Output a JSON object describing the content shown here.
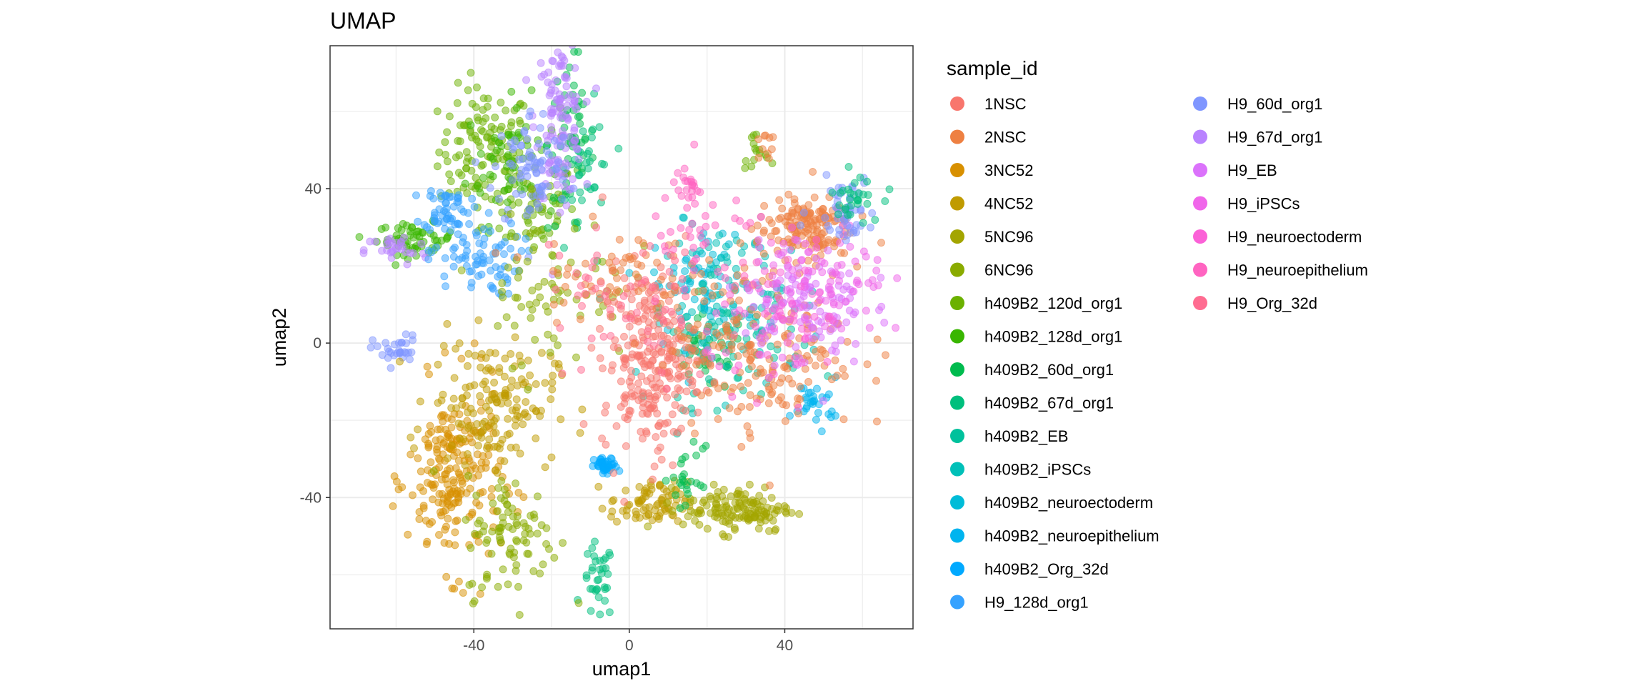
{
  "chart_data": {
    "type": "scatter",
    "title": "UMAP",
    "xlabel": "umap1",
    "ylabel": "umap2",
    "xlim": [
      -77,
      73
    ],
    "ylim": [
      -74,
      77
    ],
    "xticks": [
      -40,
      0,
      40
    ],
    "yticks": [
      -40,
      0,
      40
    ],
    "grid": true,
    "legend_title": "sample_id",
    "legend_position": "right",
    "series": [
      {
        "name": "1NSC",
        "color": "#F8766D"
      },
      {
        "name": "2NSC",
        "color": "#EE8042"
      },
      {
        "name": "3NC52",
        "color": "#D89000"
      },
      {
        "name": "4NC52",
        "color": "#C09B00"
      },
      {
        "name": "5NC96",
        "color": "#A3A500"
      },
      {
        "name": "6NC96",
        "color": "#8AAB00"
      },
      {
        "name": "h409B2_120d_org1",
        "color": "#6BB100"
      },
      {
        "name": "h409B2_128d_org1",
        "color": "#39B600"
      },
      {
        "name": "h409B2_60d_org1",
        "color": "#00BB4E"
      },
      {
        "name": "h409B2_67d_org1",
        "color": "#00BF7D"
      },
      {
        "name": "h409B2_EB",
        "color": "#00C19C"
      },
      {
        "name": "h409B2_iPSCs",
        "color": "#00C0B8"
      },
      {
        "name": "h409B2_neuroectoderm",
        "color": "#00BCD8"
      },
      {
        "name": "h409B2_neuroepithelium",
        "color": "#00B4EF"
      },
      {
        "name": "h409B2_Org_32d",
        "color": "#00A9FF"
      },
      {
        "name": "H9_128d_org1",
        "color": "#35A2FF"
      },
      {
        "name": "H9_60d_org1",
        "color": "#7F96FF"
      },
      {
        "name": "H9_67d_org1",
        "color": "#B983FF"
      },
      {
        "name": "H9_EB",
        "color": "#DB72FB"
      },
      {
        "name": "H9_iPSCs",
        "color": "#F066EA"
      },
      {
        "name": "H9_neuroectoderm",
        "color": "#FB61D7"
      },
      {
        "name": "H9_neuroepithelium",
        "color": "#FF64C1"
      },
      {
        "name": "H9_Org_32d",
        "color": "#FF6C91"
      }
    ],
    "clusters": [
      {
        "series": "h409B2_120d_org1",
        "cx": -37,
        "cy": 50,
        "sx": 6,
        "sy": 8,
        "n": 120
      },
      {
        "series": "h409B2_120d_org1",
        "cx": -25,
        "cy": 35,
        "sx": 6,
        "sy": 6,
        "n": 60
      },
      {
        "series": "h409B2_128d_org1",
        "cx": -30,
        "cy": 47,
        "sx": 6,
        "sy": 8,
        "n": 60
      },
      {
        "series": "h409B2_128d_org1",
        "cx": -55,
        "cy": 27,
        "sx": 5,
        "sy": 2,
        "n": 60
      },
      {
        "series": "h409B2_60d_org1",
        "cx": -15,
        "cy": 52,
        "sx": 3,
        "sy": 12,
        "n": 60
      },
      {
        "series": "h409B2_60d_org1",
        "cx": 20,
        "cy": -3,
        "sx": 5,
        "sy": 5,
        "n": 40
      },
      {
        "series": "h409B2_67d_org1",
        "cx": -8,
        "cy": -62,
        "sx": 2,
        "sy": 5,
        "n": 35
      },
      {
        "series": "h409B2_67d_org1",
        "cx": -10,
        "cy": 45,
        "sx": 3,
        "sy": 8,
        "n": 30
      },
      {
        "series": "H9_67d_org1",
        "cx": -18,
        "cy": 58,
        "sx": 3,
        "sy": 10,
        "n": 120
      },
      {
        "series": "H9_67d_org1",
        "cx": -60,
        "cy": 24,
        "sx": 4,
        "sy": 2,
        "n": 30
      },
      {
        "series": "H9_60d_org1",
        "cx": -25,
        "cy": 45,
        "sx": 5,
        "sy": 8,
        "n": 80
      },
      {
        "series": "H9_128d_org1",
        "cx": -47,
        "cy": 35,
        "sx": 3,
        "sy": 3,
        "n": 50
      },
      {
        "series": "H9_128d_org1",
        "cx": -40,
        "cy": 22,
        "sx": 6,
        "sy": 5,
        "n": 80
      },
      {
        "series": "H9_60d_org1",
        "cx": -60,
        "cy": -2,
        "sx": 3,
        "sy": 2,
        "n": 30
      },
      {
        "series": "h409B2_Org_32d",
        "cx": -6,
        "cy": -32,
        "sx": 1.5,
        "sy": 1.2,
        "n": 40
      },
      {
        "series": "h409B2_neuroepithelium",
        "cx": 48,
        "cy": -15,
        "sx": 3,
        "sy": 3,
        "n": 30
      },
      {
        "series": "h409B2_neuroectoderm",
        "cx": 18,
        "cy": 15,
        "sx": 6,
        "sy": 8,
        "n": 80
      },
      {
        "series": "h409B2_iPSCs",
        "cx": 30,
        "cy": 10,
        "sx": 10,
        "sy": 10,
        "n": 80
      },
      {
        "series": "h409B2_EB",
        "cx": 25,
        "cy": 0,
        "sx": 10,
        "sy": 8,
        "n": 60
      },
      {
        "series": "3NC52",
        "cx": -45,
        "cy": -35,
        "sx": 6,
        "sy": 12,
        "n": 220
      },
      {
        "series": "4NC52",
        "cx": -35,
        "cy": -15,
        "sx": 8,
        "sy": 8,
        "n": 160
      },
      {
        "series": "4NC52",
        "cx": 5,
        "cy": -42,
        "sx": 5,
        "sy": 3,
        "n": 80
      },
      {
        "series": "5NC96",
        "cx": 28,
        "cy": -43,
        "sx": 7,
        "sy": 3,
        "n": 140
      },
      {
        "series": "6NC96",
        "cx": -30,
        "cy": -50,
        "sx": 6,
        "sy": 8,
        "n": 90
      },
      {
        "series": "6NC96",
        "cx": -20,
        "cy": 15,
        "sx": 10,
        "sy": 10,
        "n": 70
      },
      {
        "series": "1NSC",
        "cx": 5,
        "cy": -5,
        "sx": 6,
        "sy": 12,
        "n": 260
      },
      {
        "series": "2NSC",
        "cx": 45,
        "cy": 30,
        "sx": 6,
        "sy": 4,
        "n": 150
      },
      {
        "series": "2NSC",
        "cx": 35,
        "cy": 0,
        "sx": 12,
        "sy": 12,
        "n": 200
      },
      {
        "series": "2NSC",
        "cx": -5,
        "cy": 18,
        "sx": 10,
        "sy": 6,
        "n": 60
      },
      {
        "series": "H9_EB",
        "cx": 45,
        "cy": 10,
        "sx": 8,
        "sy": 8,
        "n": 120
      },
      {
        "series": "H9_iPSCs",
        "cx": 50,
        "cy": 15,
        "sx": 8,
        "sy": 8,
        "n": 80
      },
      {
        "series": "H9_neuroectoderm",
        "cx": 40,
        "cy": 5,
        "sx": 10,
        "sy": 8,
        "n": 60
      },
      {
        "series": "H9_neuroepithelium",
        "cx": 20,
        "cy": 25,
        "sx": 8,
        "sy": 8,
        "n": 40
      },
      {
        "series": "H9_neuroepithelium",
        "cx": 15,
        "cy": 40,
        "sx": 2,
        "sy": 2,
        "n": 20
      },
      {
        "series": "H9_Org_32d",
        "cx": 0,
        "cy": 10,
        "sx": 12,
        "sy": 12,
        "n": 60
      },
      {
        "series": "H9_60d_org1",
        "cx": 55,
        "cy": 35,
        "sx": 4,
        "sy": 4,
        "n": 50
      },
      {
        "series": "h409B2_67d_org1",
        "cx": 58,
        "cy": 38,
        "sx": 3,
        "sy": 3,
        "n": 30
      },
      {
        "series": "h409B2_120d_org1",
        "cx": 32,
        "cy": 50,
        "sx": 1.5,
        "sy": 2,
        "n": 15
      },
      {
        "series": "2NSC",
        "cx": 35,
        "cy": 50,
        "sx": 1.5,
        "sy": 2,
        "n": 10
      },
      {
        "series": "h409B2_60d_org1",
        "cx": 15,
        "cy": -35,
        "sx": 2,
        "sy": 4,
        "n": 25
      }
    ]
  }
}
